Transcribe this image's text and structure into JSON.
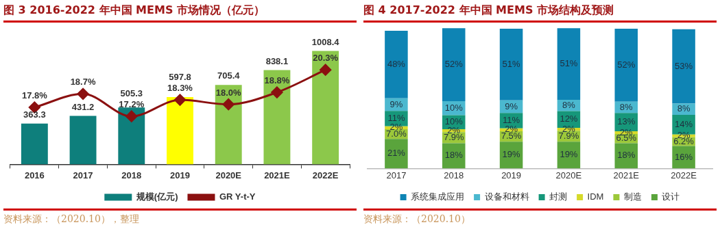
{
  "chart_data": [
    {
      "type": "bar",
      "title": "图 3  2016-2022 年中国 MEMS 市场情况（亿元）",
      "categories": [
        "2016",
        "2017",
        "2018",
        "2019",
        "2020E",
        "2021E",
        "2022E"
      ],
      "series": [
        {
          "name": "规模(亿元)",
          "color": "#0e7f7c",
          "colors": [
            "#0e7f7c",
            "#0e7f7c",
            "#0e7f7c",
            "#ffff00",
            "#8cc84b",
            "#8cc84b",
            "#8cc84b"
          ],
          "values": [
            363.3,
            431.2,
            505.3,
            597.8,
            705.4,
            838.1,
            1008.4
          ]
        },
        {
          "name": "GR Y-t-Y",
          "type": "line",
          "axis": "y2",
          "color": "#8b1010",
          "values": [
            17.8,
            18.7,
            17.2,
            18.3,
            18.0,
            18.8,
            20.3
          ],
          "value_labels": [
            "17.8%",
            "18.7%",
            "17.2%",
            "18.3%",
            "18.0%",
            "18.8%",
            "20.3%"
          ]
        }
      ],
      "data_labels": true,
      "legend": "bottom",
      "marker": "diamond",
      "annotations": [
        "资料来源：（2020.10），整理"
      ]
    },
    {
      "type": "bar",
      "title": "图 4  2017-2022 年中国 MEMS 市场结构及预测",
      "categories": [
        "2017",
        "2018",
        "2019",
        "2020E",
        "2021E",
        "2022E"
      ],
      "stacked": true,
      "series": [
        {
          "name": "设计",
          "color": "#5aa43c",
          "values": [
            21,
            18,
            19,
            19,
            18,
            16
          ],
          "value_labels": [
            "21%",
            "18%",
            "19%",
            "19%",
            "18%",
            "16%"
          ]
        },
        {
          "name": "制造",
          "color": "#9cc83a",
          "values": [
            7.0,
            7.9,
            7.5,
            7.9,
            6.5,
            6.2
          ],
          "value_labels": [
            "7.0%",
            "7.9%",
            "7.5%",
            "7.9%",
            "6.5%",
            "6.2%"
          ]
        },
        {
          "name": "IDM",
          "color": "#d6da2a",
          "values": [
            2,
            2,
            2,
            2,
            2,
            2
          ],
          "value_labels": [
            "2%",
            "2%",
            "2%",
            "2%",
            "2%",
            "2%"
          ]
        },
        {
          "name": "封测",
          "color": "#16977a",
          "values": [
            11,
            10,
            11,
            12,
            13,
            14
          ],
          "value_labels": [
            "11%",
            "10%",
            "11%",
            "12%",
            "13%",
            "14%"
          ]
        },
        {
          "name": "设备和材料",
          "color": "#4bb8cf",
          "values": [
            9,
            10,
            9,
            8,
            8,
            8
          ],
          "value_labels": [
            "9%",
            "10%",
            "9%",
            "8%",
            "8%",
            "8%"
          ]
        },
        {
          "name": "系统集成应用",
          "color": "#0e84b4",
          "values": [
            48,
            52,
            51,
            51,
            52,
            53
          ],
          "value_labels": [
            "48%",
            "52%",
            "51%",
            "51%",
            "52%",
            "53%"
          ]
        }
      ],
      "legend": "bottom",
      "annotations": [
        "资料来源：（2020.10）"
      ]
    }
  ]
}
